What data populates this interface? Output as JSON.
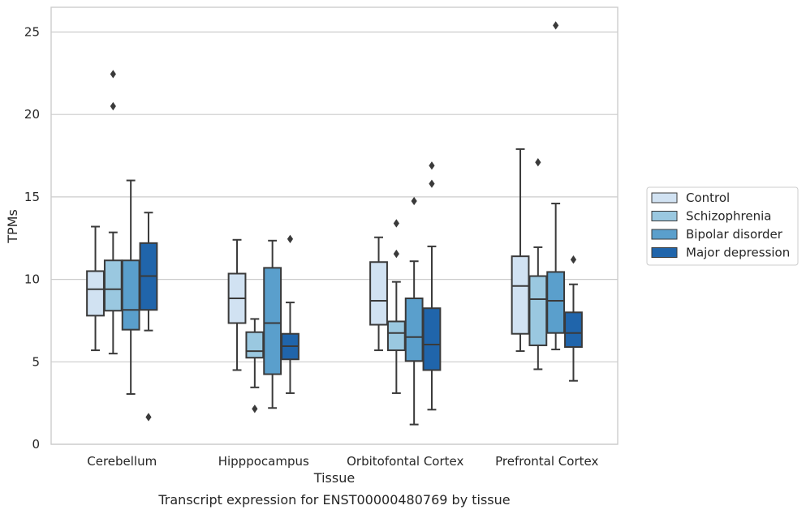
{
  "chart_data": {
    "type": "box",
    "title": "",
    "caption": "Transcript expression for ENST00000480769 by tissue",
    "xlabel": "Tissue",
    "ylabel": "TPMs",
    "ylim": [
      0,
      26.5
    ],
    "yticks": [
      0,
      5,
      10,
      15,
      20,
      25
    ],
    "grid": "horizontal",
    "legend_position": "right-center",
    "categories": [
      "Cerebellum",
      "Hipppocampus",
      "Orbitofontal Cortex",
      "Prefrontal Cortex"
    ],
    "series": [
      {
        "name": "Control",
        "color": "#d1e2f2",
        "boxes": [
          {
            "whislo": 5.7,
            "q1": 7.8,
            "med": 9.4,
            "q3": 10.5,
            "whishi": 13.2,
            "fliers": []
          },
          {
            "whislo": 4.5,
            "q1": 7.35,
            "med": 8.85,
            "q3": 10.35,
            "whishi": 12.4,
            "fliers": []
          },
          {
            "whislo": 5.7,
            "q1": 7.25,
            "med": 8.7,
            "q3": 11.05,
            "whishi": 12.55,
            "fliers": []
          },
          {
            "whislo": 5.65,
            "q1": 6.7,
            "med": 9.6,
            "q3": 11.4,
            "whishi": 17.9,
            "fliers": []
          }
        ]
      },
      {
        "name": "Schizophrenia",
        "color": "#9ac8e0",
        "boxes": [
          {
            "whislo": 5.5,
            "q1": 8.1,
            "med": 9.4,
            "q3": 11.15,
            "whishi": 12.85,
            "fliers": [
              20.5,
              22.45
            ]
          },
          {
            "whislo": 3.45,
            "q1": 5.25,
            "med": 5.65,
            "q3": 6.8,
            "whishi": 7.6,
            "fliers": [
              2.15
            ]
          },
          {
            "whislo": 3.1,
            "q1": 5.7,
            "med": 6.75,
            "q3": 7.45,
            "whishi": 9.85,
            "fliers": [
              11.55,
              13.4
            ]
          },
          {
            "whislo": 4.55,
            "q1": 6.0,
            "med": 8.8,
            "q3": 10.2,
            "whishi": 11.95,
            "fliers": [
              17.1
            ]
          }
        ]
      },
      {
        "name": "Bipolar disorder",
        "color": "#5a9fcc",
        "boxes": [
          {
            "whislo": 3.05,
            "q1": 6.95,
            "med": 8.15,
            "q3": 11.15,
            "whishi": 16.0,
            "fliers": []
          },
          {
            "whislo": 2.2,
            "q1": 4.25,
            "med": 7.35,
            "q3": 10.7,
            "whishi": 12.35,
            "fliers": []
          },
          {
            "whislo": 1.2,
            "q1": 5.05,
            "med": 6.5,
            "q3": 8.85,
            "whishi": 11.1,
            "fliers": [
              14.75
            ]
          },
          {
            "whislo": 5.75,
            "q1": 6.75,
            "med": 8.7,
            "q3": 10.45,
            "whishi": 14.6,
            "fliers": [
              25.4
            ]
          }
        ]
      },
      {
        "name": "Major depression",
        "color": "#2065ab",
        "boxes": [
          {
            "whislo": 6.9,
            "q1": 8.15,
            "med": 10.2,
            "q3": 12.2,
            "whishi": 14.05,
            "fliers": [
              1.65
            ]
          },
          {
            "whislo": 3.1,
            "q1": 5.15,
            "med": 5.95,
            "q3": 6.7,
            "whishi": 8.6,
            "fliers": [
              12.45
            ]
          },
          {
            "whislo": 2.1,
            "q1": 4.5,
            "med": 6.05,
            "q3": 8.25,
            "whishi": 12.0,
            "fliers": [
              15.8,
              16.9
            ]
          },
          {
            "whislo": 3.85,
            "q1": 5.9,
            "med": 6.75,
            "q3": 8.0,
            "whishi": 9.7,
            "fliers": [
              11.2
            ]
          }
        ]
      }
    ]
  }
}
